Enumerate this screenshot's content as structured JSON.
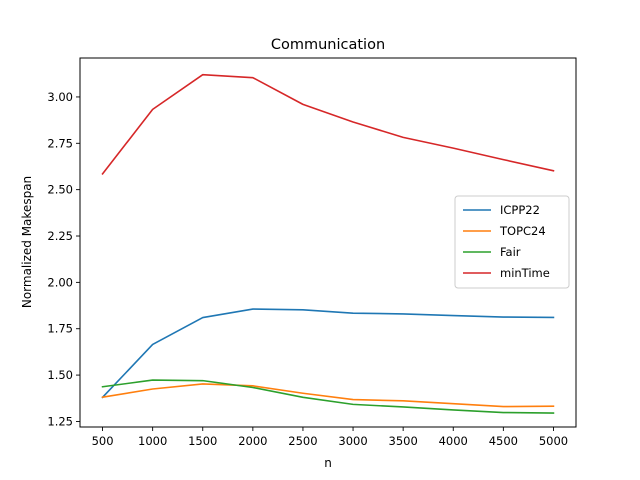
{
  "chart_data": {
    "type": "line",
    "title": "Communication",
    "xlabel": "n",
    "ylabel": "Normalized Makespan",
    "x": [
      500,
      1000,
      1500,
      2000,
      2500,
      3000,
      3500,
      4000,
      4500,
      5000
    ],
    "xticks": [
      500,
      1000,
      1500,
      2000,
      2500,
      3000,
      3500,
      4000,
      4500,
      5000
    ],
    "xtick_labels": [
      "500",
      "1000",
      "1500",
      "2000",
      "2500",
      "3000",
      "3500",
      "4000",
      "4500",
      "5000"
    ],
    "yticks": [
      1.25,
      1.5,
      1.75,
      2.0,
      2.25,
      2.5,
      2.75,
      3.0
    ],
    "ytick_labels": [
      "1.25",
      "1.50",
      "1.75",
      "2.00",
      "2.25",
      "2.50",
      "2.75",
      "3.00"
    ],
    "xlim": [
      275,
      5225
    ],
    "ylim": [
      1.22,
      3.21
    ],
    "grid": false,
    "legend_position": "center-right",
    "series": [
      {
        "name": "ICPP22",
        "color": "#1f77b4",
        "values": [
          1.38,
          1.665,
          1.81,
          1.856,
          1.852,
          1.834,
          1.83,
          1.821,
          1.813,
          1.811
        ]
      },
      {
        "name": "TOPC24",
        "color": "#ff7f0e",
        "values": [
          1.381,
          1.425,
          1.452,
          1.442,
          1.402,
          1.368,
          1.361,
          1.346,
          1.33,
          1.332
        ]
      },
      {
        "name": "Fair",
        "color": "#2ca02c",
        "values": [
          1.437,
          1.473,
          1.47,
          1.433,
          1.38,
          1.342,
          1.328,
          1.312,
          1.298,
          1.295
        ]
      },
      {
        "name": "minTime",
        "color": "#d62728",
        "values": [
          2.585,
          2.933,
          3.12,
          3.104,
          2.96,
          2.865,
          2.782,
          2.724,
          2.662,
          2.602
        ]
      }
    ]
  }
}
